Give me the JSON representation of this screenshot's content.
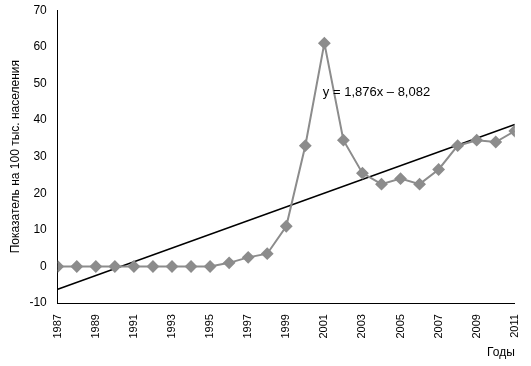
{
  "chart_data": {
    "type": "line",
    "x_label": "Годы",
    "y_label": "Показатель на 100 тыс. населения",
    "annotation": "y = 1,876x – 8,082",
    "categories": [
      "1987",
      null,
      "1989",
      null,
      "1991",
      null,
      "1993",
      null,
      "1995",
      null,
      "1997",
      null,
      "1999",
      null,
      "2001",
      null,
      "2003",
      null,
      "2005",
      null,
      "2007",
      null,
      "2009",
      null,
      "2011"
    ],
    "series": [
      {
        "color": "#8c8c8c",
        "marker": "diamond",
        "line_style": "solid",
        "values": [
          0,
          0,
          0,
          0,
          0,
          0,
          0,
          0,
          0,
          1,
          2.5,
          3.5,
          11,
          33,
          61,
          34.5,
          25.5,
          22.5,
          24,
          22.5,
          26.5,
          33,
          34.5,
          34,
          37
        ]
      },
      {
        "color": "#000000",
        "marker": "none",
        "line_style": "solid",
        "values": [
          -6.2,
          null,
          null,
          null,
          null,
          null,
          null,
          null,
          null,
          null,
          null,
          null,
          null,
          null,
          null,
          null,
          null,
          null,
          null,
          null,
          null,
          null,
          null,
          null,
          38.8
        ]
      }
    ],
    "ylim": [
      -10,
      70
    ],
    "yticks": [
      -10,
      0,
      10,
      20,
      30,
      40,
      50,
      60,
      70
    ],
    "grid": false,
    "data_labels": false
  }
}
